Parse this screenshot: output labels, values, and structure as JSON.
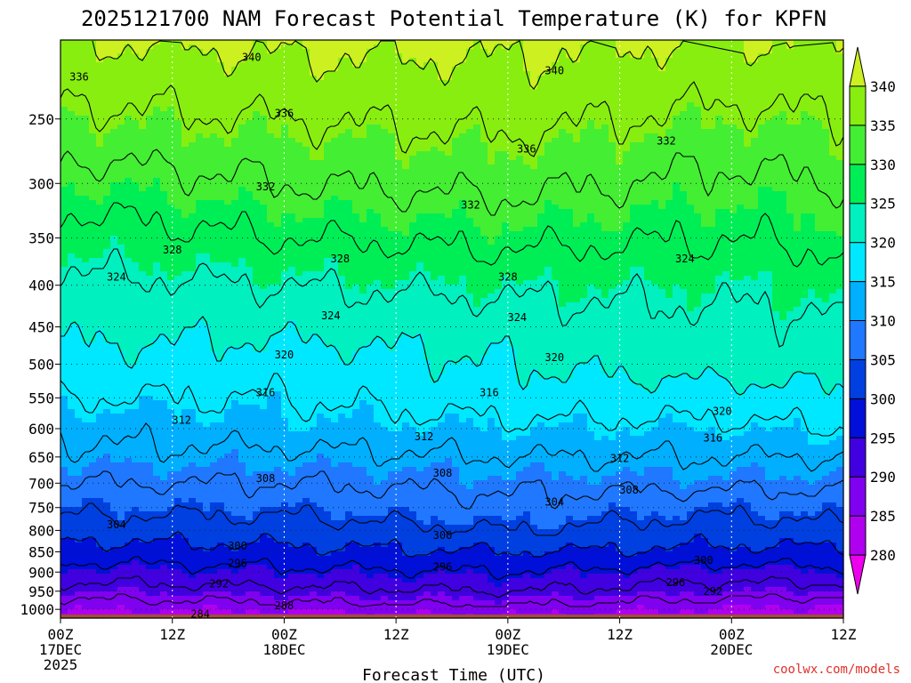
{
  "chart_data": {
    "type": "contour",
    "title": "2025121700 NAM Forecast Potential Temperature (K) for KPFN",
    "xlabel": "Forecast Time (UTC)",
    "ylabel": "",
    "credit": "coolwx.com/models",
    "x_hours": [
      0,
      12,
      24,
      36,
      48,
      60,
      72,
      84
    ],
    "x_ticks": [
      {
        "hour": 0,
        "line1": "00Z",
        "line2": "17DEC",
        "line3": "2025"
      },
      {
        "hour": 12,
        "line1": "12Z",
        "line2": "",
        "line3": ""
      },
      {
        "hour": 24,
        "line1": "00Z",
        "line2": "18DEC",
        "line3": ""
      },
      {
        "hour": 36,
        "line1": "12Z",
        "line2": "",
        "line3": ""
      },
      {
        "hour": 48,
        "line1": "00Z",
        "line2": "19DEC",
        "line3": ""
      },
      {
        "hour": 60,
        "line1": "12Z",
        "line2": "",
        "line3": ""
      },
      {
        "hour": 72,
        "line1": "00Z",
        "line2": "20DEC",
        "line3": ""
      },
      {
        "hour": 84,
        "line1": "12Z",
        "line2": "",
        "line3": ""
      }
    ],
    "y_axis": {
      "quantity": "pressure (hPa)",
      "scale": "log",
      "inverted": true,
      "range": [
        1025,
        200
      ]
    },
    "y_ticks": [
      250,
      300,
      350,
      400,
      450,
      500,
      550,
      600,
      650,
      700,
      750,
      800,
      850,
      900,
      950,
      1000
    ],
    "grid": true,
    "ground_color": "#a0522d",
    "colorbar": {
      "levels": [
        280,
        285,
        290,
        295,
        300,
        305,
        310,
        315,
        320,
        325,
        330,
        335,
        340
      ],
      "colors": [
        "#ee00ee",
        "#b000f0",
        "#8000f0",
        "#4000e0",
        "#0010d8",
        "#0040e0",
        "#1f78ff",
        "#00b0ff",
        "#00e8ff",
        "#00f0c0",
        "#00ee55",
        "#44ee33",
        "#88ee10",
        "#ccf020"
      ]
    },
    "contour_levels": [
      284,
      288,
      292,
      296,
      300,
      304,
      308,
      312,
      316,
      320,
      324,
      328,
      332,
      336,
      340
    ],
    "profiles": {
      "levels_hpa": [
        1015,
        1000,
        950,
        900,
        850,
        800,
        750,
        700,
        650,
        600,
        550,
        500,
        450,
        400,
        350,
        300,
        250,
        200
      ],
      "times_hours": [
        0,
        24,
        48,
        72,
        84
      ],
      "theta_k": [
        [
          283,
          285,
          290,
          294,
          298,
          302,
          305,
          308,
          311,
          313,
          316,
          319,
          321,
          323,
          326,
          330,
          335,
          340
        ],
        [
          283,
          286,
          291,
          295,
          299,
          302,
          305,
          308,
          311,
          314,
          316,
          318,
          321,
          324,
          328,
          332,
          336,
          341
        ],
        [
          285,
          287,
          292,
          296,
          300,
          304,
          307,
          309,
          312,
          315,
          318,
          320,
          322,
          325,
          329,
          333,
          337,
          341
        ],
        [
          283,
          285,
          290,
          294,
          299,
          302,
          305,
          309,
          312,
          315,
          318,
          322,
          323,
          325,
          328,
          331,
          335,
          340
        ],
        [
          283,
          284,
          290,
          295,
          299,
          303,
          306,
          309,
          312,
          316,
          319,
          322,
          323,
          326,
          329,
          332,
          336,
          340
        ]
      ]
    },
    "contour_labels": [
      {
        "text": "340",
        "hour": 20.5,
        "p": 210
      },
      {
        "text": "340",
        "hour": 53,
        "p": 218
      },
      {
        "text": "336",
        "hour": 2,
        "p": 222
      },
      {
        "text": "336",
        "hour": 24,
        "p": 246
      },
      {
        "text": "336",
        "hour": 50,
        "p": 272
      },
      {
        "text": "332",
        "hour": 65,
        "p": 266
      },
      {
        "text": "332",
        "hour": 22,
        "p": 303
      },
      {
        "text": "332",
        "hour": 44,
        "p": 319
      },
      {
        "text": "328",
        "hour": 12,
        "p": 362
      },
      {
        "text": "328",
        "hour": 30,
        "p": 371
      },
      {
        "text": "328",
        "hour": 48,
        "p": 391
      },
      {
        "text": "324",
        "hour": 6,
        "p": 391
      },
      {
        "text": "324",
        "hour": 29,
        "p": 436
      },
      {
        "text": "324",
        "hour": 49,
        "p": 438
      },
      {
        "text": "324",
        "hour": 67,
        "p": 371
      },
      {
        "text": "320",
        "hour": 24,
        "p": 487
      },
      {
        "text": "320",
        "hour": 53,
        "p": 491
      },
      {
        "text": "320",
        "hour": 71,
        "p": 571
      },
      {
        "text": "316",
        "hour": 22,
        "p": 542
      },
      {
        "text": "316",
        "hour": 46,
        "p": 542
      },
      {
        "text": "316",
        "hour": 70,
        "p": 616
      },
      {
        "text": "312",
        "hour": 13,
        "p": 586
      },
      {
        "text": "312",
        "hour": 39,
        "p": 614
      },
      {
        "text": "312",
        "hour": 60,
        "p": 653
      },
      {
        "text": "308",
        "hour": 22,
        "p": 691
      },
      {
        "text": "308",
        "hour": 41,
        "p": 680
      },
      {
        "text": "308",
        "hour": 61,
        "p": 714
      },
      {
        "text": "304",
        "hour": 6,
        "p": 787
      },
      {
        "text": "304",
        "hour": 53,
        "p": 738
      },
      {
        "text": "300",
        "hour": 19,
        "p": 836
      },
      {
        "text": "300",
        "hour": 41,
        "p": 811
      },
      {
        "text": "300",
        "hour": 69,
        "p": 871
      },
      {
        "text": "296",
        "hour": 19,
        "p": 878
      },
      {
        "text": "296",
        "hour": 41,
        "p": 887
      },
      {
        "text": "296",
        "hour": 66,
        "p": 927
      },
      {
        "text": "292",
        "hour": 17,
        "p": 930
      },
      {
        "text": "292",
        "hour": 70,
        "p": 951
      },
      {
        "text": "288",
        "hour": 24,
        "p": 990
      },
      {
        "text": "284",
        "hour": 15,
        "p": 1013
      }
    ]
  }
}
